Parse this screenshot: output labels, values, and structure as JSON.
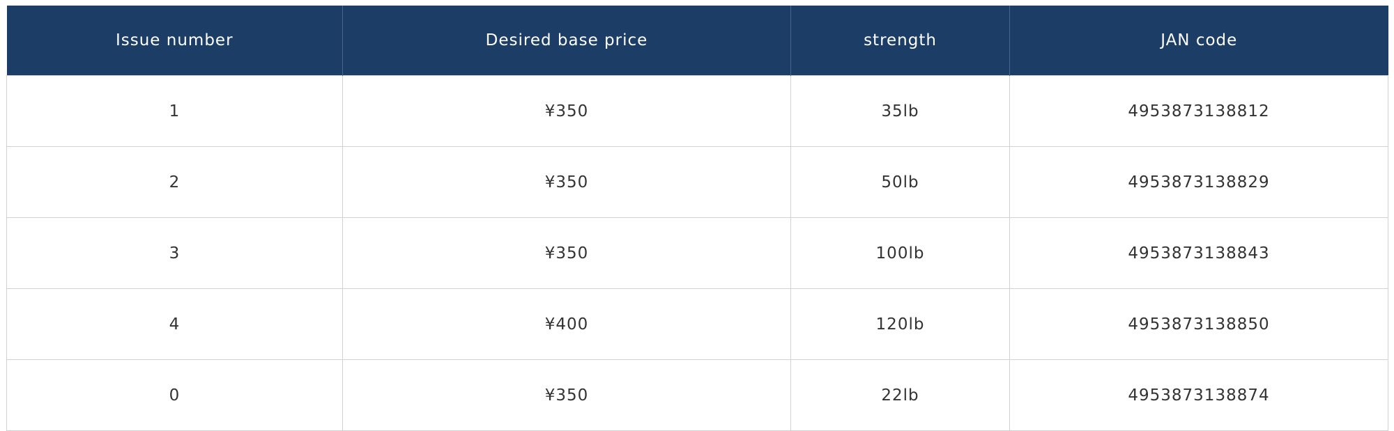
{
  "table": {
    "headers": [
      "Issue number",
      "Desired base price",
      "strength",
      "JAN code"
    ],
    "rows": [
      [
        "1",
        "¥350",
        "35lb",
        "4953873138812"
      ],
      [
        "2",
        "¥350",
        "50lb",
        "4953873138829"
      ],
      [
        "3",
        "¥350",
        "100lb",
        "4953873138843"
      ],
      [
        "4",
        "¥400",
        "120lb",
        "4953873138850"
      ],
      [
        "0",
        "¥350",
        "22lb",
        "4953873138874"
      ]
    ]
  }
}
